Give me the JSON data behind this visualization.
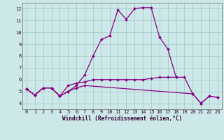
{
  "xlabel": "Windchill (Refroidissement éolien,°C)",
  "bg_color": "#cce8e8",
  "grid_color": "#aacccc",
  "line_color": "#880088",
  "xlim": [
    -0.5,
    23.5
  ],
  "ylim": [
    3.5,
    12.5
  ],
  "yticks": [
    4,
    5,
    6,
    7,
    8,
    9,
    10,
    11,
    12
  ],
  "xticks": [
    0,
    1,
    2,
    3,
    4,
    5,
    6,
    7,
    8,
    9,
    10,
    11,
    12,
    13,
    14,
    15,
    16,
    17,
    18,
    19,
    20,
    21,
    22,
    23
  ],
  "series1_x": [
    0,
    1,
    2,
    3,
    4,
    5,
    6,
    7,
    8,
    9,
    10,
    11,
    12,
    13,
    14,
    15,
    16,
    17,
    18,
    19,
    20,
    21,
    22,
    23
  ],
  "series1_y": [
    5.2,
    4.7,
    5.3,
    5.3,
    4.6,
    5.0,
    5.5,
    6.4,
    8.0,
    9.4,
    9.7,
    11.9,
    11.1,
    12.0,
    12.1,
    12.1,
    9.6,
    8.6,
    6.2,
    6.2,
    4.8,
    4.0,
    4.6,
    4.5
  ],
  "series2_x": [
    0,
    1,
    2,
    3,
    4,
    5,
    6,
    7,
    8,
    9,
    10,
    11,
    12,
    13,
    14,
    15,
    16,
    17,
    18
  ],
  "series2_y": [
    5.2,
    4.7,
    5.3,
    5.3,
    4.6,
    5.5,
    5.7,
    5.8,
    6.0,
    6.0,
    6.0,
    6.0,
    6.0,
    6.0,
    6.0,
    6.1,
    6.2,
    6.2,
    6.2
  ],
  "series3_x": [
    0,
    1,
    2,
    3,
    4,
    5,
    6,
    7,
    20,
    21,
    22,
    23
  ],
  "series3_y": [
    5.2,
    4.7,
    5.3,
    5.3,
    4.6,
    5.0,
    5.3,
    5.5,
    4.8,
    4.0,
    4.6,
    4.5
  ],
  "tick_fontsize": 5,
  "xlabel_fontsize": 5.5
}
